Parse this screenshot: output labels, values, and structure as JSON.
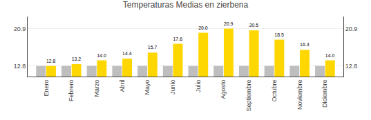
{
  "chart_data": {
    "type": "bar",
    "title": "Temperaturas Medias en zierbena",
    "categories": [
      "Enero",
      "Febrero",
      "Marzo",
      "Abril",
      "Mayo",
      "Junio",
      "Julio",
      "Agosto",
      "Septiembre",
      "Octubre",
      "Noviembre",
      "Diciembre"
    ],
    "series": [
      {
        "color": "#BEBEBE",
        "values": [
          12.8,
          12.8,
          12.8,
          12.8,
          12.8,
          12.8,
          12.8,
          12.8,
          12.8,
          12.8,
          12.8,
          12.8
        ]
      },
      {
        "color": "#FFD700",
        "values": [
          12.8,
          13.2,
          14.0,
          14.4,
          15.7,
          17.6,
          20.0,
          20.9,
          20.5,
          18.5,
          16.3,
          14.0
        ],
        "value_labels": [
          "12.8",
          "13.2",
          "14.0",
          "14.4",
          "15.7",
          "17.6",
          "20.0",
          "20.9",
          "20.5",
          "18.5",
          "16.3",
          "14.0"
        ],
        "data_labels": true
      }
    ],
    "ylim": [
      10.5,
      23.5
    ],
    "yticks": [
      12.8,
      20.9
    ],
    "y2lim": [
      10.5,
      23.5
    ],
    "y2ticks": [
      12.8,
      20.9
    ],
    "grid": true
  }
}
